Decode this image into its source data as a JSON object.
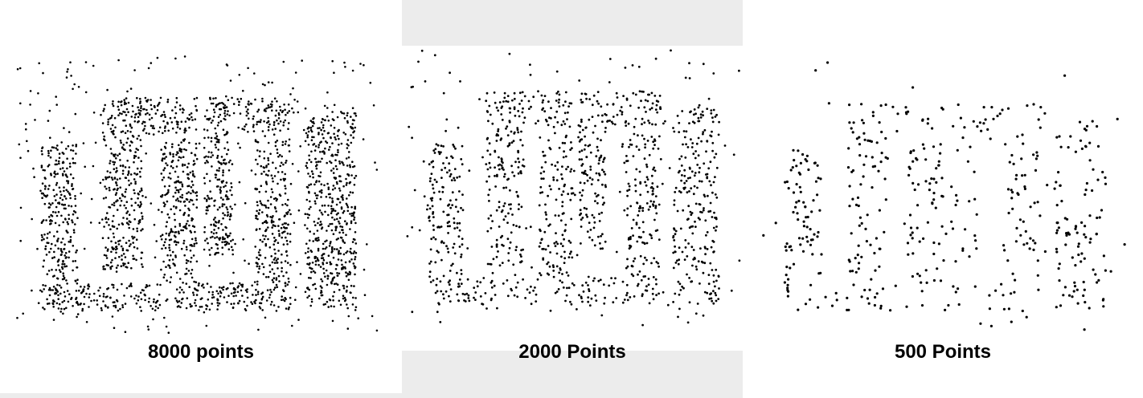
{
  "figure": {
    "panels": [
      {
        "caption": "8000 points"
      },
      {
        "caption": "2000 Points"
      },
      {
        "caption": "500 Points"
      }
    ],
    "colors": {
      "dots": "#000000",
      "background": "#ffffff",
      "frame_gray": "#ececec"
    }
  }
}
